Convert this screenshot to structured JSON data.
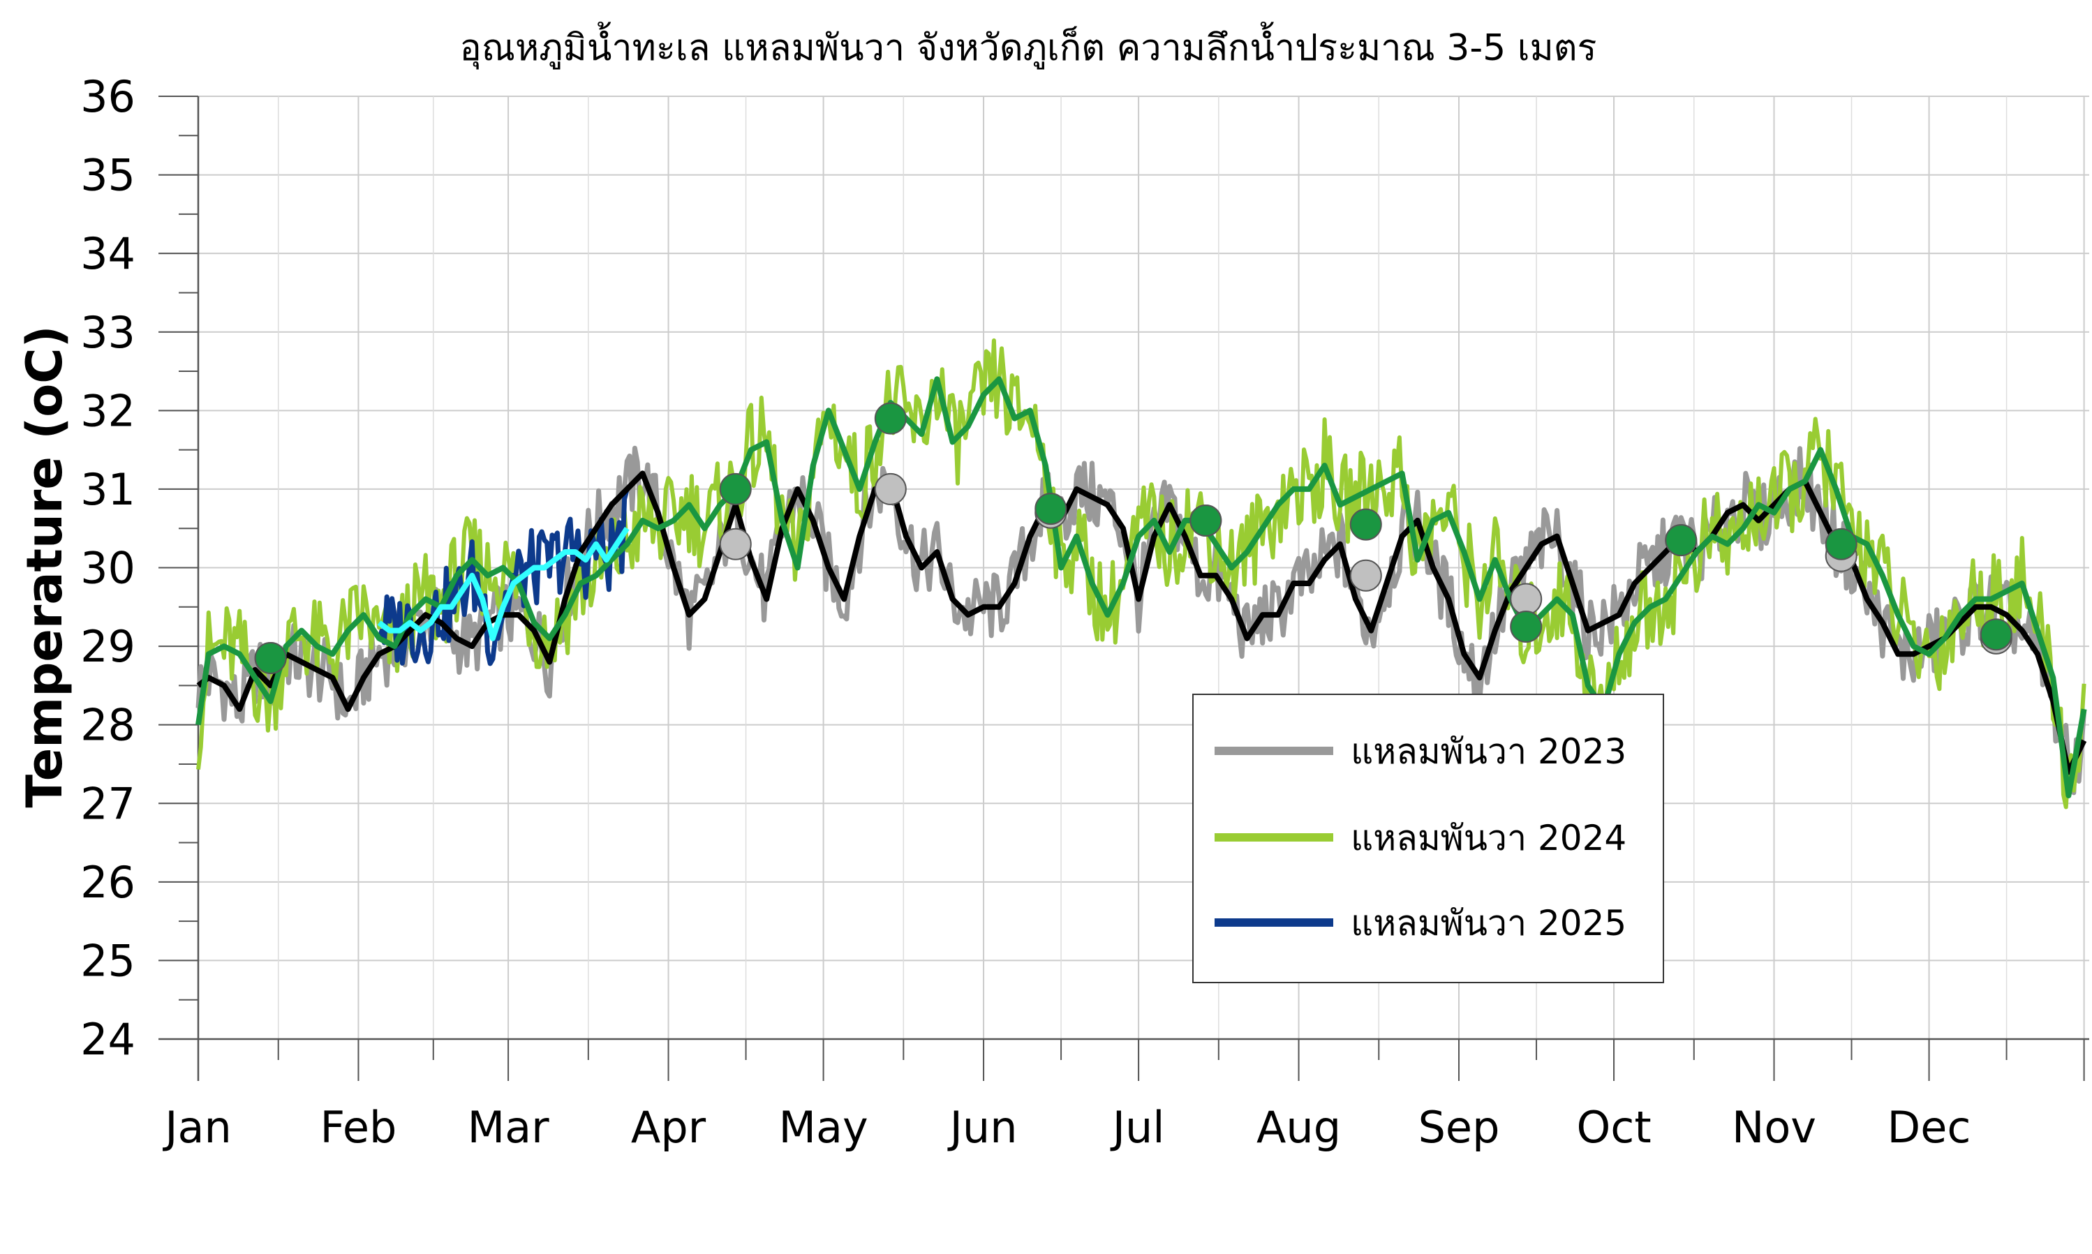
{
  "chart_data": {
    "type": "line",
    "title": "อุณหภูมิน้ำทะเล แหลมพันวา จังหวัดภูเก็ต ความลึกน้ำประมาณ 3-5 เมตร",
    "xlabel": "",
    "ylabel": "Temperature (oC)",
    "ylim": [
      24,
      36
    ],
    "yticks": [
      24,
      25,
      26,
      27,
      28,
      29,
      30,
      31,
      32,
      33,
      34,
      35,
      36
    ],
    "xlim": [
      0,
      366
    ],
    "month_starts": [
      0,
      31,
      60,
      91,
      121,
      152,
      182,
      213,
      244,
      274,
      305,
      335,
      365
    ],
    "month_labels": [
      "Jan",
      "Feb",
      "Mar",
      "Apr",
      "May",
      "Jun",
      "Jul",
      "Aug",
      "Sep",
      "Oct",
      "Nov",
      "Dec"
    ],
    "grid": true,
    "legend_position": "center-right",
    "legend": [
      {
        "label": "แหลมพันวา 2023",
        "color": "#999999"
      },
      {
        "label": "แหลมพันวา 2024",
        "color": "#99cc33"
      },
      {
        "label": "แหลมพันวา 2025",
        "color": "#0d3a8c"
      }
    ],
    "series": [
      {
        "name": "แหลมพันวา 2023",
        "color": "#999999",
        "mean_color": "#000000",
        "x": [
          0,
          2,
          5,
          8,
          11,
          14,
          17,
          20,
          23,
          26,
          29,
          32,
          35,
          38,
          41,
          44,
          47,
          50,
          53,
          56,
          59,
          62,
          65,
          68,
          71,
          74,
          77,
          80,
          83,
          86,
          89,
          92,
          95,
          98,
          101,
          104,
          107,
          110,
          113,
          116,
          119,
          122,
          125,
          128,
          131,
          134,
          137,
          140,
          143,
          146,
          149,
          152,
          155,
          158,
          161,
          164,
          167,
          170,
          173,
          176,
          179,
          182,
          185,
          188,
          191,
          194,
          197,
          200,
          203,
          206,
          209,
          212,
          215,
          218,
          221,
          224,
          227,
          230,
          233,
          236,
          239,
          242,
          245,
          248,
          251,
          254,
          257,
          260,
          263,
          266,
          269,
          272,
          275,
          278,
          281,
          284,
          287,
          290,
          293,
          296,
          299,
          302,
          305,
          308,
          311,
          314,
          317,
          320,
          323,
          326,
          329,
          332,
          335,
          338,
          341,
          344,
          347,
          350,
          353,
          356,
          359,
          362,
          365
        ],
        "values": [
          28.5,
          28.6,
          28.5,
          28.2,
          28.7,
          28.5,
          28.9,
          28.8,
          28.7,
          28.6,
          28.2,
          28.6,
          28.9,
          29.0,
          29.2,
          29.4,
          29.3,
          29.1,
          29.0,
          29.3,
          29.4,
          29.4,
          29.2,
          28.8,
          29.6,
          30.2,
          30.5,
          30.8,
          31.0,
          31.2,
          30.7,
          30.0,
          29.4,
          29.6,
          30.2,
          30.8,
          30.1,
          29.6,
          30.5,
          31.0,
          30.6,
          30.0,
          29.6,
          30.4,
          31.0,
          31.1,
          30.4,
          30.0,
          30.2,
          29.6,
          29.4,
          29.5,
          29.5,
          29.8,
          30.4,
          30.8,
          30.6,
          31.0,
          30.9,
          30.8,
          30.5,
          29.6,
          30.4,
          30.8,
          30.4,
          29.9,
          29.9,
          29.6,
          29.1,
          29.4,
          29.4,
          29.8,
          29.8,
          30.1,
          30.3,
          29.6,
          29.2,
          29.8,
          30.4,
          30.6,
          30.0,
          29.6,
          28.9,
          28.6,
          29.2,
          29.7,
          30.0,
          30.3,
          30.4,
          29.8,
          29.2,
          29.3,
          29.4,
          29.8,
          30.0,
          30.2,
          30.4,
          30.2,
          30.4,
          30.7,
          30.8,
          30.6,
          30.8,
          31.0,
          31.1,
          30.7,
          30.3,
          30.1,
          29.6,
          29.3,
          28.9,
          28.9,
          29.0,
          29.1,
          29.3,
          29.5,
          29.5,
          29.4,
          29.2,
          28.9,
          28.3,
          27.4,
          27.8
        ]
      },
      {
        "name": "แหลมพันวา 2024",
        "color": "#99cc33",
        "mean_color": "#1a9641",
        "x": [
          0,
          2,
          5,
          8,
          11,
          14,
          17,
          20,
          23,
          26,
          29,
          32,
          35,
          38,
          41,
          44,
          47,
          50,
          53,
          56,
          59,
          62,
          65,
          68,
          71,
          74,
          77,
          80,
          83,
          86,
          89,
          92,
          95,
          98,
          101,
          104,
          107,
          110,
          113,
          116,
          119,
          122,
          125,
          128,
          131,
          134,
          137,
          140,
          143,
          146,
          149,
          152,
          155,
          158,
          161,
          164,
          167,
          170,
          173,
          176,
          179,
          182,
          185,
          188,
          191,
          194,
          197,
          200,
          203,
          206,
          209,
          212,
          215,
          218,
          221,
          224,
          227,
          230,
          233,
          236,
          239,
          242,
          245,
          248,
          251,
          254,
          257,
          260,
          263,
          266,
          269,
          272,
          275,
          278,
          281,
          284,
          287,
          290,
          293,
          296,
          299,
          302,
          305,
          308,
          311,
          314,
          317,
          320,
          323,
          326,
          329,
          332,
          335,
          338,
          341,
          344,
          347,
          350,
          353,
          356,
          359,
          362,
          365
        ],
        "values": [
          28.0,
          28.9,
          29.0,
          28.9,
          28.6,
          28.3,
          29.0,
          29.2,
          29.0,
          28.9,
          29.2,
          29.4,
          29.1,
          29.0,
          29.4,
          29.6,
          29.5,
          29.9,
          30.1,
          29.9,
          30.0,
          29.8,
          29.3,
          29.1,
          29.4,
          29.8,
          29.9,
          30.1,
          30.3,
          30.6,
          30.5,
          30.6,
          30.8,
          30.5,
          30.8,
          31.0,
          31.5,
          31.6,
          30.6,
          30.0,
          31.3,
          32.0,
          31.5,
          31.0,
          31.6,
          32.1,
          31.9,
          31.7,
          32.4,
          31.6,
          31.8,
          32.2,
          32.4,
          31.9,
          32.0,
          31.3,
          30.0,
          30.4,
          29.8,
          29.4,
          29.8,
          30.4,
          30.6,
          30.2,
          30.6,
          30.6,
          30.3,
          30.0,
          30.2,
          30.5,
          30.8,
          31.0,
          31.0,
          31.3,
          30.8,
          30.9,
          31.0,
          31.1,
          31.2,
          30.1,
          30.6,
          30.7,
          30.2,
          29.6,
          30.1,
          29.6,
          29.2,
          29.4,
          29.6,
          29.4,
          28.5,
          28.2,
          28.9,
          29.3,
          29.5,
          29.6,
          29.9,
          30.2,
          30.4,
          30.3,
          30.5,
          30.8,
          30.7,
          31.0,
          31.1,
          31.5,
          31.0,
          30.4,
          30.3,
          29.9,
          29.4,
          29.0,
          28.9,
          29.1,
          29.4,
          29.6,
          29.6,
          29.7,
          29.8,
          29.2,
          28.6,
          27.1,
          28.2
        ]
      },
      {
        "name": "แหลมพันวา 2025",
        "color": "#0d3a8c",
        "mean_color": "#33ffff",
        "x": [
          35,
          37,
          39,
          41,
          43,
          45,
          47,
          49,
          51,
          53,
          55,
          57,
          59,
          61,
          63,
          65,
          67,
          69,
          71,
          73,
          75,
          77,
          79,
          81,
          83
        ],
        "values": [
          29.3,
          29.2,
          29.2,
          29.3,
          29.2,
          29.3,
          29.5,
          29.5,
          29.7,
          29.9,
          29.6,
          29.1,
          29.5,
          29.8,
          29.9,
          30.0,
          30.0,
          30.1,
          30.2,
          30.2,
          30.1,
          30.3,
          30.1,
          30.3,
          30.5
        ]
      }
    ],
    "markers": [
      {
        "series": "แหลมพันวา 2023",
        "color": "#c0c0c0",
        "x": [
          14,
          104,
          134,
          165,
          195,
          226,
          257,
          287,
          318,
          348
        ],
        "values": [
          28.85,
          30.3,
          31.0,
          30.7,
          30.6,
          29.9,
          29.6,
          30.35,
          30.15,
          29.1
        ]
      },
      {
        "series": "แหลมพันวา 2024",
        "color": "#1a9641",
        "x": [
          14,
          104,
          134,
          165,
          195,
          226,
          257,
          287,
          318,
          348
        ],
        "values": [
          28.85,
          31.0,
          31.9,
          30.75,
          30.6,
          30.55,
          29.25,
          30.35,
          30.3,
          29.15
        ]
      }
    ]
  }
}
